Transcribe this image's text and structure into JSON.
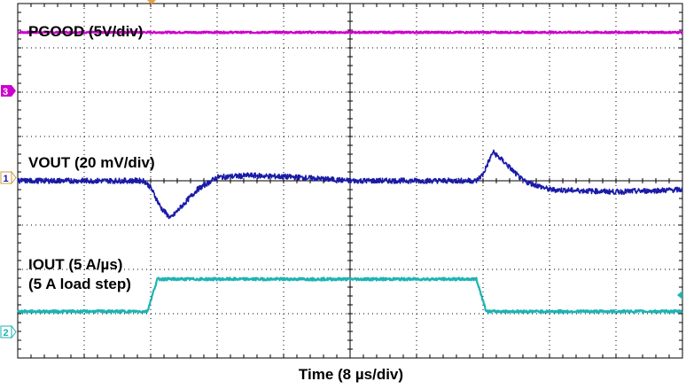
{
  "chart_data": {
    "type": "line",
    "xlabel": "Time (8 µs/div)",
    "x_divisions": 10,
    "y_divisions": 8,
    "grid": true,
    "series": [
      {
        "name": "PGOOD (5V/div)",
        "channel": "3",
        "color": "#cc00cc",
        "level_div": 3.35,
        "noise": 0.02,
        "points": [
          [
            0,
            0
          ],
          [
            10,
            0
          ]
        ]
      },
      {
        "name": "VOUT (20 mV/div)",
        "channel": "1",
        "color": "#1a1aa8",
        "level_div": 0,
        "noise": 0.06,
        "points": [
          [
            0,
            0.0
          ],
          [
            1.9,
            0.0
          ],
          [
            2.0,
            -0.15
          ],
          [
            2.15,
            -0.6
          ],
          [
            2.3,
            -0.85
          ],
          [
            2.45,
            -0.6
          ],
          [
            2.7,
            -0.2
          ],
          [
            3.0,
            0.08
          ],
          [
            3.5,
            0.12
          ],
          [
            4.2,
            0.08
          ],
          [
            5.0,
            0.0
          ],
          [
            6.0,
            0.0
          ],
          [
            6.9,
            0.0
          ],
          [
            7.0,
            0.15
          ],
          [
            7.15,
            0.65
          ],
          [
            7.3,
            0.45
          ],
          [
            7.6,
            0.0
          ],
          [
            8.0,
            -0.2
          ],
          [
            9.0,
            -0.25
          ],
          [
            10,
            -0.2
          ]
        ]
      },
      {
        "name": "IOUT (5 A/µs)",
        "name2": "(5 A load step)",
        "channel": "2",
        "color": "#1fb3b3",
        "level_div": -2.95,
        "noise": 0.03,
        "points": [
          [
            0,
            0.0
          ],
          [
            1.95,
            0.0
          ],
          [
            2.1,
            0.73
          ],
          [
            6.9,
            0.73
          ],
          [
            7.05,
            0.0
          ],
          [
            10,
            0.0
          ]
        ]
      }
    ]
  }
}
